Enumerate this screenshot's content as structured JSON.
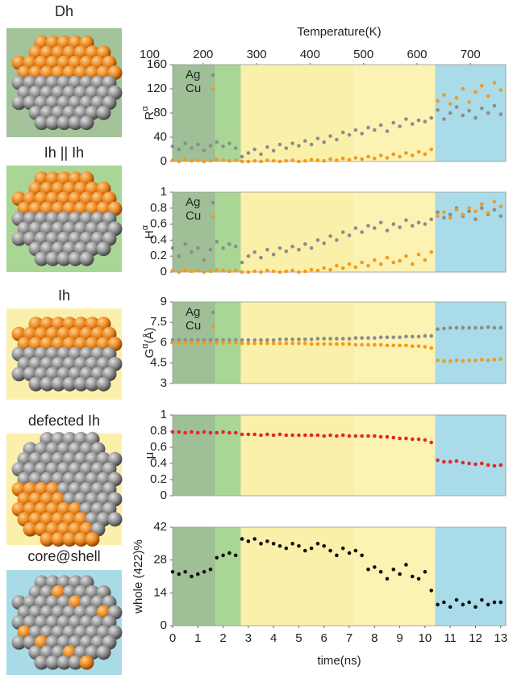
{
  "structures": [
    {
      "label": "Dh"
    },
    {
      "label": "Ih || Ih"
    },
    {
      "label": "Ih"
    },
    {
      "label": "defected Ih"
    },
    {
      "label": "core@shell"
    }
  ],
  "chart_data": {
    "type": "scatter",
    "xlabel": "time(ns)",
    "x2label": "Temperature(K)",
    "xlim": [
      0,
      13.2
    ],
    "xticks": [
      0,
      1,
      2,
      3,
      4,
      5,
      6,
      7,
      8,
      9,
      10,
      11,
      12,
      13
    ],
    "x2lim": [
      143,
      766
    ],
    "x2ticks": [
      100,
      200,
      300,
      400,
      500,
      600,
      700
    ],
    "legend": "upper left",
    "regions": [
      {
        "start": 0,
        "end": 1.7,
        "color": "#9fc097"
      },
      {
        "start": 1.7,
        "end": 2.7,
        "color": "#a9d695"
      },
      {
        "start": 2.7,
        "end": 7.2,
        "color": "#fbf0a9"
      },
      {
        "start": 7.2,
        "end": 10.4,
        "color": "#fbf2b3"
      },
      {
        "start": 10.4,
        "end": 13.2,
        "color": "#a9dbe8"
      }
    ],
    "x": [
      0,
      0.25,
      0.5,
      0.75,
      1,
      1.25,
      1.5,
      1.75,
      2,
      2.25,
      2.5,
      2.75,
      3,
      3.25,
      3.5,
      3.75,
      4,
      4.25,
      4.5,
      4.75,
      5,
      5.25,
      5.5,
      5.75,
      6,
      6.25,
      6.5,
      6.75,
      7,
      7.25,
      7.5,
      7.75,
      8,
      8.25,
      8.5,
      8.75,
      9,
      9.25,
      9.5,
      9.75,
      10,
      10.25,
      10.5,
      10.75,
      11,
      11.25,
      11.5,
      11.75,
      12,
      12.25,
      12.5,
      12.75,
      13
    ],
    "panels": [
      {
        "ylabel": {
          "text": "R",
          "sup": "α"
        },
        "ylim": [
          0,
          160
        ],
        "yticks": [
          0,
          40,
          80,
          120,
          160
        ],
        "series": [
          {
            "name": "Ag",
            "color": "#8c8c8c",
            "values": [
              25,
              20,
              30,
              22,
              28,
              18,
              26,
              32,
              25,
              30,
              22,
              8,
              14,
              20,
              12,
              24,
              18,
              28,
              22,
              30,
              26,
              34,
              28,
              38,
              32,
              42,
              36,
              48,
              44,
              52,
              46,
              56,
              52,
              60,
              50,
              64,
              58,
              70,
              62,
              68,
              66,
              72,
              85,
              70,
              80,
              90,
              76,
              84,
              72,
              88,
              80,
              92,
              78
            ]
          },
          {
            "name": "Cu",
            "color": "#f39a1e",
            "values": [
              2,
              0,
              3,
              1,
              2,
              0,
              1,
              3,
              2,
              1,
              2,
              0,
              0,
              1,
              0,
              2,
              1,
              0,
              1,
              2,
              0,
              1,
              3,
              2,
              1,
              4,
              2,
              5,
              3,
              6,
              4,
              8,
              5,
              10,
              6,
              12,
              8,
              14,
              10,
              16,
              12,
              20,
              100,
              110,
              95,
              105,
              120,
              98,
              115,
              125,
              108,
              130,
              118
            ]
          }
        ]
      },
      {
        "ylabel": {
          "text": "H",
          "sup": "α"
        },
        "ylim": [
          0,
          1
        ],
        "yticks": [
          0,
          0.2,
          0.4,
          0.6,
          0.8,
          1
        ],
        "series": [
          {
            "name": "Ag",
            "color": "#8c8c8c",
            "values": [
              0.3,
              0.2,
              0.35,
              0.25,
              0.3,
              0.15,
              0.28,
              0.38,
              0.3,
              0.35,
              0.32,
              0.12,
              0.2,
              0.25,
              0.18,
              0.28,
              0.22,
              0.3,
              0.26,
              0.32,
              0.28,
              0.35,
              0.3,
              0.4,
              0.36,
              0.45,
              0.4,
              0.5,
              0.46,
              0.55,
              0.5,
              0.58,
              0.55,
              0.62,
              0.52,
              0.6,
              0.56,
              0.65,
              0.58,
              0.62,
              0.6,
              0.66,
              0.75,
              0.68,
              0.72,
              0.8,
              0.7,
              0.76,
              0.66,
              0.8,
              0.72,
              0.78,
              0.7
            ]
          },
          {
            "name": "Cu",
            "color": "#f39a1e",
            "values": [
              0.02,
              0,
              0.03,
              0.01,
              0.02,
              0,
              0.01,
              0.03,
              0.02,
              0.01,
              0.02,
              0,
              0,
              0.01,
              0,
              0.02,
              0.01,
              0,
              0.01,
              0.02,
              0,
              0.01,
              0.03,
              0.02,
              0.05,
              0.03,
              0.08,
              0.05,
              0.1,
              0.06,
              0.12,
              0.08,
              0.15,
              0.1,
              0.18,
              0.12,
              0.14,
              0.2,
              0.1,
              0.22,
              0.15,
              0.25,
              0.7,
              0.75,
              0.68,
              0.78,
              0.72,
              0.8,
              0.76,
              0.85,
              0.74,
              0.88,
              0.82
            ]
          }
        ]
      },
      {
        "ylabel": {
          "text": "G",
          "sup": "α",
          "suffix": "(Å)"
        },
        "ylim": [
          3,
          9
        ],
        "yticks": [
          3,
          4.5,
          6,
          7.5,
          9
        ],
        "series": [
          {
            "name": "Ag",
            "color": "#8c8c8c",
            "values": [
              6.2,
              6.2,
              6.2,
              6.2,
              6.2,
              6.2,
              6.2,
              6.2,
              6.2,
              6.2,
              6.2,
              6.2,
              6.2,
              6.2,
              6.2,
              6.2,
              6.2,
              6.25,
              6.25,
              6.25,
              6.25,
              6.25,
              6.25,
              6.3,
              6.3,
              6.3,
              6.3,
              6.3,
              6.3,
              6.35,
              6.35,
              6.35,
              6.35,
              6.4,
              6.4,
              6.4,
              6.4,
              6.45,
              6.45,
              6.45,
              6.5,
              6.5,
              7.0,
              7.05,
              7.1,
              7.1,
              7.1,
              7.1,
              7.1,
              7.1,
              7.15,
              7.1,
              7.1
            ]
          },
          {
            "name": "Cu",
            "color": "#f39a1e",
            "values": [
              6.0,
              6.0,
              6.0,
              6.0,
              6.0,
              6.0,
              6.0,
              6.0,
              6.0,
              6.0,
              6.0,
              5.95,
              5.95,
              5.95,
              5.95,
              5.95,
              5.95,
              5.95,
              5.95,
              5.95,
              5.95,
              5.95,
              5.9,
              5.9,
              5.9,
              5.9,
              5.9,
              5.9,
              5.9,
              5.85,
              5.85,
              5.85,
              5.85,
              5.85,
              5.8,
              5.8,
              5.8,
              5.8,
              5.75,
              5.75,
              5.7,
              5.6,
              4.7,
              4.65,
              4.65,
              4.7,
              4.65,
              4.7,
              4.7,
              4.75,
              4.7,
              4.75,
              4.8
            ]
          }
        ]
      },
      {
        "ylabel": {
          "text": "μ"
        },
        "ylim": [
          0,
          1
        ],
        "yticks": [
          0,
          0.2,
          0.4,
          0.6,
          0.8,
          1
        ],
        "series": [
          {
            "color": "#e8262a",
            "values": [
              0.79,
              0.79,
              0.78,
              0.79,
              0.78,
              0.79,
              0.78,
              0.78,
              0.79,
              0.78,
              0.78,
              0.76,
              0.76,
              0.76,
              0.75,
              0.76,
              0.75,
              0.76,
              0.75,
              0.75,
              0.75,
              0.75,
              0.75,
              0.75,
              0.74,
              0.75,
              0.74,
              0.75,
              0.74,
              0.74,
              0.74,
              0.74,
              0.74,
              0.73,
              0.73,
              0.72,
              0.71,
              0.71,
              0.7,
              0.7,
              0.69,
              0.66,
              0.44,
              0.42,
              0.42,
              0.43,
              0.41,
              0.4,
              0.39,
              0.4,
              0.38,
              0.37,
              0.38
            ]
          }
        ]
      },
      {
        "ylabel": {
          "text": "whole (422)%"
        },
        "ylim": [
          0,
          42
        ],
        "yticks": [
          0,
          14,
          28,
          42
        ],
        "series": [
          {
            "color": "#111111",
            "values": [
              23,
              22,
              23,
              21,
              22,
              23,
              24,
              29,
              30,
              31,
              30,
              37,
              36,
              37,
              35,
              36,
              35,
              34,
              33,
              35,
              34,
              32,
              33,
              35,
              34,
              32,
              30,
              33,
              31,
              32,
              30,
              24,
              25,
              23,
              20,
              24,
              22,
              26,
              21,
              20,
              23,
              15,
              9,
              10,
              8,
              11,
              9,
              10,
              8,
              11,
              9,
              10,
              10
            ]
          }
        ]
      }
    ]
  }
}
